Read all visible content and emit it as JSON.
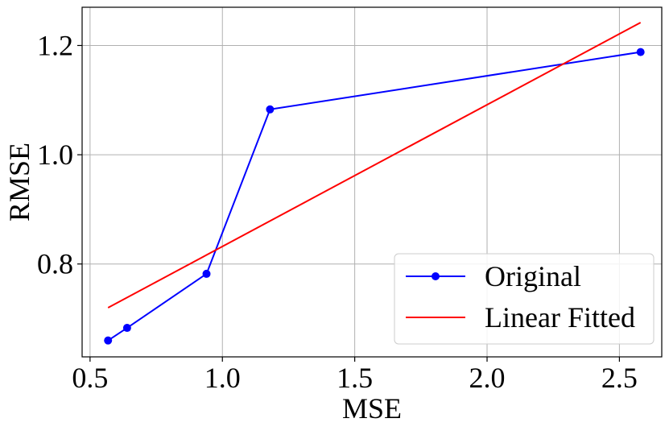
{
  "chart_data": {
    "type": "line",
    "title": "",
    "xlabel": "MSE",
    "ylabel": "RMSE",
    "xlim": [
      0.47,
      2.66
    ],
    "ylim": [
      0.63,
      1.27
    ],
    "x_ticks": [
      0.5,
      1.0,
      1.5,
      2.0,
      2.5
    ],
    "x_tick_labels": [
      "0.5",
      "1.0",
      "1.5",
      "2.0",
      "2.5"
    ],
    "y_ticks": [
      0.8,
      1.0,
      1.2
    ],
    "y_tick_labels": [
      "0.8",
      "1.0",
      "1.2"
    ],
    "grid": true,
    "legend_position": "lower-right",
    "series": [
      {
        "name": "Original",
        "color": "#0000ff",
        "marker": "circle",
        "x": [
          0.568,
          0.64,
          0.94,
          1.18,
          2.58
        ],
        "y": [
          0.66,
          0.683,
          0.782,
          1.083,
          1.188
        ]
      },
      {
        "name": "Linear Fitted",
        "color": "#ff0000",
        "marker": "none",
        "x": [
          0.568,
          2.58
        ],
        "y": [
          0.72,
          1.242
        ]
      }
    ]
  }
}
